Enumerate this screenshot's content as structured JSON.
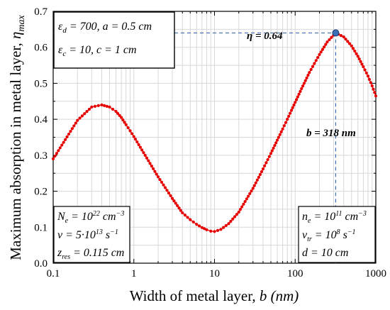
{
  "chart_data": {
    "type": "line",
    "xlabel_main": "Width of metal layer, ",
    "xlabel_var": "b (nm)",
    "ylabel_main": "Maximum absorption in metal layer, ",
    "ylabel_var": "η",
    "ylabel_sub": "max",
    "x_scale": "log",
    "xlim": [
      0.1,
      1000
    ],
    "ylim": [
      0.0,
      0.7
    ],
    "grid": true,
    "x_ticks": [
      0.1,
      1,
      10,
      100,
      1000
    ],
    "x_tick_labels": [
      "0.1",
      "1",
      "10",
      "100",
      "1000"
    ],
    "y_ticks": [
      0.0,
      0.1,
      0.2,
      0.3,
      0.4,
      0.5,
      0.6,
      0.7
    ],
    "y_tick_labels": [
      "0.0",
      "0.1",
      "0.2",
      "0.3",
      "0.4",
      "0.5",
      "0.6",
      "0.7"
    ],
    "series": [
      {
        "color": "#e60000",
        "x": [
          0.1,
          0.2,
          0.3,
          0.4,
          0.5,
          0.6,
          0.7,
          0.8,
          0.9,
          1.0,
          2,
          3,
          4,
          5,
          6,
          7,
          8,
          9,
          10,
          12,
          15,
          20,
          30,
          40,
          50,
          60,
          70,
          80,
          90,
          100,
          120,
          150,
          200,
          250,
          318,
          400,
          500,
          600,
          700,
          800,
          900,
          1000
        ],
        "y": [
          0.29,
          0.397,
          0.434,
          0.44,
          0.434,
          0.422,
          0.405,
          0.385,
          0.368,
          0.352,
          0.24,
          0.18,
          0.14,
          0.121,
          0.108,
          0.099,
          0.093,
          0.089,
          0.088,
          0.094,
          0.11,
          0.142,
          0.208,
          0.262,
          0.305,
          0.342,
          0.373,
          0.4,
          0.425,
          0.447,
          0.485,
          0.53,
          0.58,
          0.615,
          0.64,
          0.629,
          0.604,
          0.575,
          0.546,
          0.52,
          0.493,
          0.465
        ]
      }
    ],
    "highlight_point": {
      "x": 318,
      "y": 0.64,
      "color": "#3a6fb5"
    },
    "annotations": {
      "eta_label": "η = 0.64",
      "b_label": "b = 318 nm"
    }
  },
  "boxes": {
    "top_left": {
      "line1": "εd = 700, a = 0.5 cm",
      "line1_parts": [
        "ε",
        "d",
        " = 700, a = 0.5 cm"
      ],
      "line2": "εc = 10, c = 1 cm",
      "line2_parts": [
        "ε",
        "c",
        " = 10, c = 1 cm"
      ]
    },
    "bottom_left": {
      "line1_parts": [
        "N",
        "e",
        " = 10",
        "22",
        " cm",
        "−3"
      ],
      "line2_parts": [
        "ν = 5·10",
        "13",
        " s",
        "−1"
      ],
      "line3_parts": [
        "z",
        "res",
        " = 0.115 cm"
      ]
    },
    "bottom_right": {
      "line1_parts": [
        "n",
        "e",
        " = 10",
        "11",
        " cm",
        "−3"
      ],
      "line2_parts": [
        "ν",
        "tr",
        " = 10",
        "8",
        " s",
        "−1"
      ],
      "line3": "d = 10 cm"
    }
  }
}
